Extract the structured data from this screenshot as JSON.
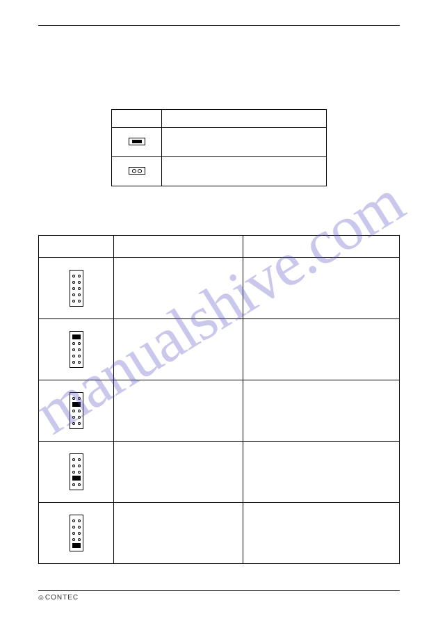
{
  "watermark": {
    "text": "manualshive.com",
    "color": "rgba(90, 80, 200, 0.32)",
    "fontsize": 90
  },
  "table1": {
    "header_left": "",
    "header_right": "",
    "rows": [
      {
        "icon": "closed",
        "text": ""
      },
      {
        "icon": "open",
        "text": ""
      }
    ]
  },
  "table2": {
    "headers": [
      "",
      "",
      ""
    ],
    "rows": [
      {
        "jumper": [
          0,
          0,
          0,
          0,
          0
        ],
        "c2": "",
        "c3": ""
      },
      {
        "jumper": [
          1,
          0,
          0,
          0,
          0
        ],
        "c2": "",
        "c3": ""
      },
      {
        "jumper": [
          0,
          1,
          0,
          0,
          0
        ],
        "c2": "",
        "c3": ""
      },
      {
        "jumper": [
          0,
          0,
          0,
          1,
          0
        ],
        "c2": "",
        "c3": ""
      },
      {
        "jumper": [
          0,
          0,
          0,
          0,
          1
        ],
        "c2": "",
        "c3": ""
      }
    ]
  },
  "footer": {
    "brand": "CONTEC"
  }
}
